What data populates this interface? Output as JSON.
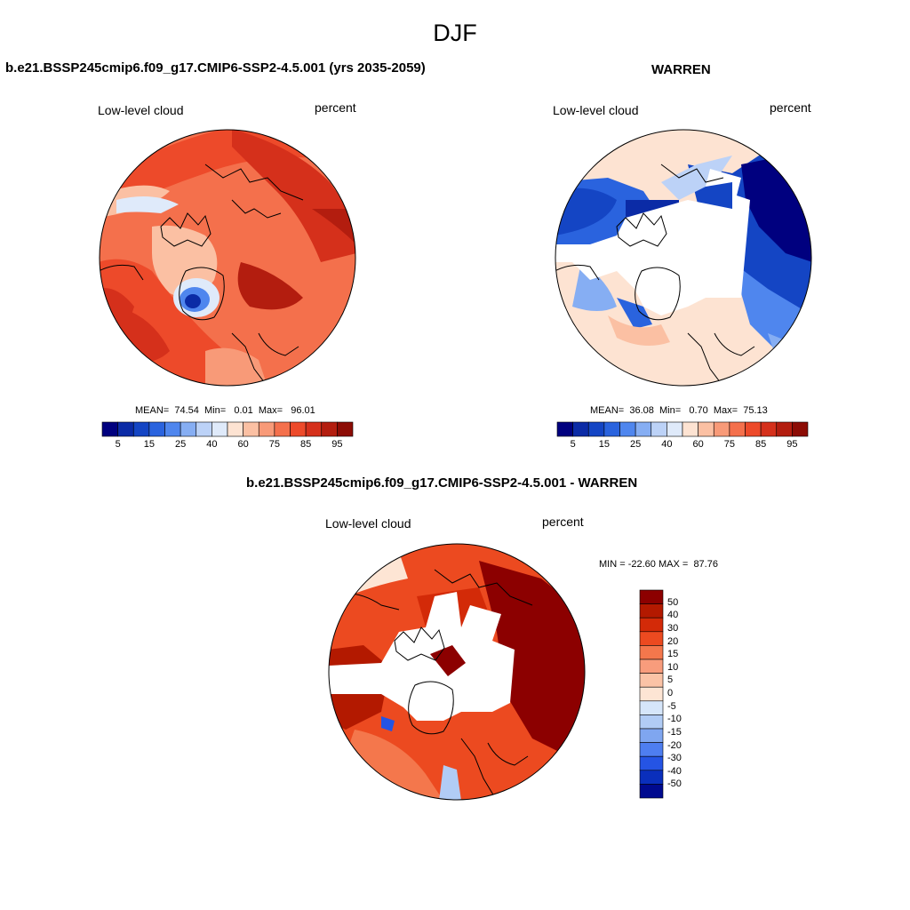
{
  "title": "DJF",
  "colors": {
    "absolute": [
      "#00007f",
      "#0b2ba6",
      "#1445c4",
      "#2a63de",
      "#4f86ee",
      "#86aef3",
      "#bcd2f7",
      "#dfeafa",
      "#fde3d2",
      "#fbc0a3",
      "#f89a78",
      "#f4704c",
      "#ed4a2a",
      "#d5301b",
      "#b31d0f",
      "#8c0c05"
    ],
    "difference": [
      "#8c0000",
      "#b31900",
      "#d32a08",
      "#ec4a20",
      "#f4774c",
      "#f89c7c",
      "#fbc3a6",
      "#fde5d4",
      "#d6e6fa",
      "#b1ccf5",
      "#7fa6f0",
      "#4e7ef0",
      "#2554e4",
      "#0a2fbc",
      "#000a8f"
    ]
  },
  "panels": [
    {
      "id": "model",
      "title": "b.e21.BSSP245cmip6.f09_g17.CMIP6-SSP2-4.5.001 (yrs 2035-2059)",
      "left_label": "Low-level cloud",
      "right_label": "percent",
      "stats": {
        "mean_label": "MEAN=",
        "mean": "74.54",
        "min_label": "Min=",
        "min": "0.01",
        "max_label": "Max=",
        "max": "96.01"
      },
      "colorbar_ticks": [
        "5",
        "15",
        "25",
        "40",
        "60",
        "75",
        "85",
        "95"
      ]
    },
    {
      "id": "obs",
      "title": "WARREN",
      "left_label": "Low-level cloud",
      "right_label": "percent",
      "stats": {
        "mean_label": "MEAN=",
        "mean": "36.08",
        "min_label": "Min=",
        "min": "0.70",
        "max_label": "Max=",
        "max": "75.13"
      },
      "colorbar_ticks": [
        "5",
        "15",
        "25",
        "40",
        "60",
        "75",
        "85",
        "95"
      ]
    },
    {
      "id": "diff",
      "title": "b.e21.BSSP245cmip6.f09_g17.CMIP6-SSP2-4.5.001 - WARREN",
      "left_label": "Low-level cloud",
      "right_label": "percent",
      "stats": {
        "min_label": "MIN =",
        "min": "-22.60",
        "max_label": "MAX =",
        "max": "87.76"
      },
      "colorbar_ticks": [
        "50",
        "40",
        "30",
        "20",
        "15",
        "10",
        "5",
        "0",
        "-5",
        "-10",
        "-15",
        "-20",
        "-30",
        "-40",
        "-50"
      ]
    }
  ]
}
